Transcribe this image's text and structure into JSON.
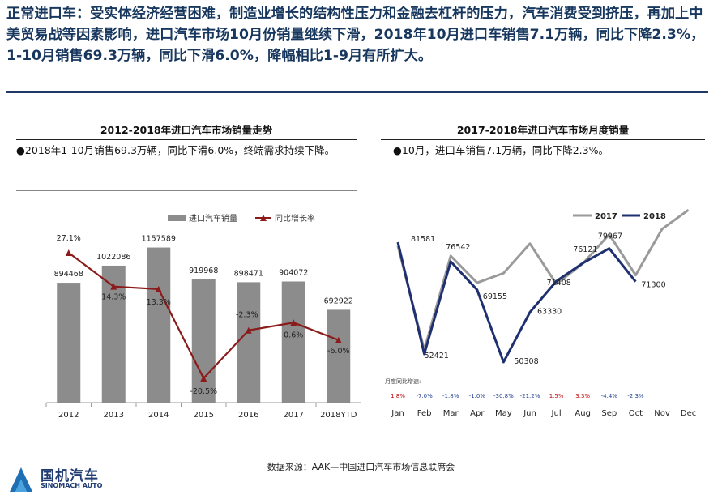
{
  "headline": "正常进口车：受实体经济经营困难，制造业增长的结构性压力和金融去杠杆的压力，汽车消费受到挤压，再加上中美贸易战等因素影响，进口汽车市场10月份销量继续下滑，2018年10月进口车销售7.1万辆，同比下降2.3%，1-10月销售69.3万辆，同比下滑6.0%，降幅相比1-9月有所扩大。",
  "left_panel": {
    "title": "2012-2018年进口汽车市场销量走势",
    "bullet": "●2018年1-10月销售69.3万辆，同比下滑6.0%，终端需求持续下降。"
  },
  "right_panel": {
    "title": "2017-2018年进口汽车市场月度销量",
    "bullet": "●10月，进口车销售7.1万辆，同比下降2.3%。"
  },
  "chart_data": [
    {
      "type": "bar",
      "categories": [
        "2012",
        "2013",
        "2014",
        "2015",
        "2016",
        "2017",
        "2018YTD"
      ],
      "series": [
        {
          "name": "进口汽车销量",
          "type": "bar",
          "values": [
            894468,
            1022086,
            1157589,
            919968,
            898471,
            904072,
            692922
          ],
          "color": "#8c8c8c"
        },
        {
          "name": "同比增长率",
          "type": "line",
          "values": [
            27.1,
            14.3,
            13.3,
            -20.5,
            -2.3,
            0.6,
            -6.0
          ],
          "color": "#8b1a1a"
        }
      ],
      "value_labels": [
        "894468",
        "1022086",
        "1157589",
        "919968",
        "898471",
        "904072",
        "692922"
      ],
      "rate_labels": [
        "27.1%",
        "14.3%",
        "13.3%",
        "-20.5%",
        "-2.3%",
        "0.6%",
        "-6.0%"
      ],
      "legend_position": "top"
    },
    {
      "type": "line",
      "categories": [
        "Jan",
        "Feb",
        "Mar",
        "Apr",
        "May",
        "Jun",
        "Jul",
        "Aug",
        "Sep",
        "Oct",
        "Nov",
        "Dec"
      ],
      "series": [
        {
          "name": "2017",
          "color": "#9a9a9a",
          "values": [
            80600,
            53500,
            78000,
            71000,
            73500,
            81200,
            70700,
            76000,
            83600,
            73000,
            85000,
            90000
          ]
        },
        {
          "name": "2018",
          "color": "#1f3070",
          "values": [
            81581,
            52421,
            76542,
            69155,
            50308,
            63330,
            71408,
            76121,
            79967,
            71300,
            null,
            null
          ]
        }
      ],
      "point_labels": [
        "81581",
        "52421",
        "76542",
        "69155",
        "50308",
        "63330",
        "71408",
        "76121",
        "79967",
        "71300"
      ],
      "growth_title": "月度同比增速:",
      "growth_labels": [
        "1.8%",
        "-7.0%",
        "-1.8%",
        "-1.0%",
        "-30.8%",
        "-21.2%",
        "1.5%",
        "3.3%",
        "-4.4%",
        "-2.3%"
      ],
      "growth_colors": [
        "#c00000",
        "#1f3f8f",
        "#1f3f8f",
        "#1f3f8f",
        "#1f3f8f",
        "#1f3f8f",
        "#c00000",
        "#c00000",
        "#1f3f8f",
        "#1f3f8f"
      ],
      "legend_position": "top-right"
    }
  ],
  "source": "数据来源：AAK—中国进口汽车市场信息联席会",
  "logo": {
    "cn": "国机汽车",
    "en": "SINOMACH AUTO"
  }
}
